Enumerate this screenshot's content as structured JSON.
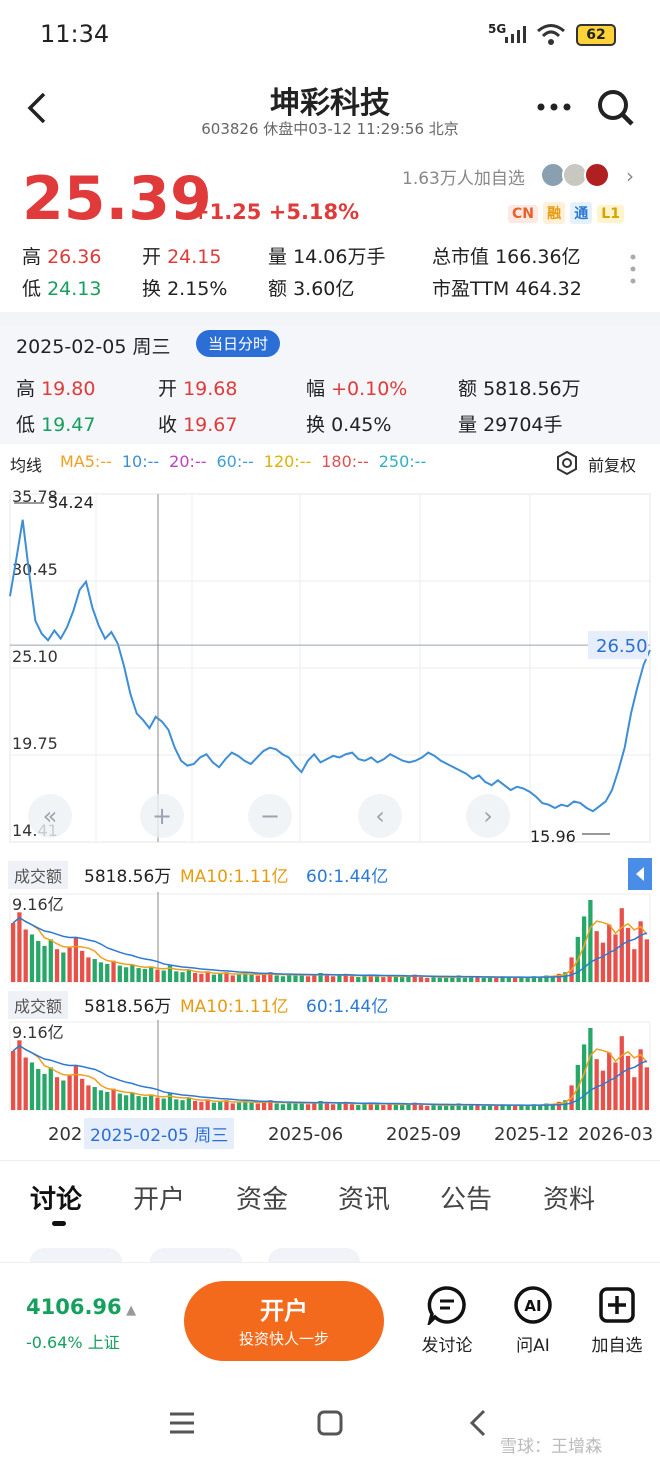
{
  "status_bar": {
    "time": "11:34",
    "signal": "5G",
    "battery": "62"
  },
  "header": {
    "title": "坤彩科技",
    "subtitle": "603826 休盘中03-12 11:29:56 北京"
  },
  "quote": {
    "price": "25.39",
    "change": "+1.25",
    "change_pct": "+5.18%",
    "watchers": "1.63万人加自选",
    "tags": [
      "CN",
      "融",
      "通",
      "L1"
    ],
    "row1": [
      {
        "label": "高",
        "value": "26.36"
      },
      {
        "label": "开",
        "value": "24.15"
      },
      {
        "label": "量",
        "value": "14.06万手"
      },
      {
        "label": "总市值",
        "value": "166.36亿"
      }
    ],
    "row2": [
      {
        "label": "低",
        "value": "24.13"
      },
      {
        "label": "换",
        "value": "2.15%"
      },
      {
        "label": "额",
        "value": "3.60亿"
      },
      {
        "label": "市盈TTM",
        "value": "464.32"
      }
    ]
  },
  "day": {
    "date": "2025-02-05 周三",
    "chip": "当日分时",
    "row1": [
      {
        "label": "高",
        "value": "19.80"
      },
      {
        "label": "开",
        "value": "19.68"
      },
      {
        "label": "幅",
        "value": "+0.10%"
      },
      {
        "label": "额",
        "value": "5818.56万"
      }
    ],
    "row2": [
      {
        "label": "低",
        "value": "19.47"
      },
      {
        "label": "收",
        "value": "19.67"
      },
      {
        "label": "换",
        "value": "0.45%"
      },
      {
        "label": "量",
        "value": "29704手"
      }
    ]
  },
  "ma_legend": {
    "title": "均线",
    "items": [
      {
        "label": "MA5:--",
        "color": "#f0a020"
      },
      {
        "label": "10:--",
        "color": "#3a8fd8"
      },
      {
        "label": "20:--",
        "color": "#c040c0"
      },
      {
        "label": "60:--",
        "color": "#3a9fd8"
      },
      {
        "label": "120:--",
        "color": "#e0b000"
      },
      {
        "label": "180:--",
        "color": "#e05050"
      },
      {
        "label": "250:--",
        "color": "#30b0c0"
      }
    ],
    "adjust": "前复权"
  },
  "chart_data": {
    "type": "line",
    "y_ticks": [
      "35.78",
      "30.45",
      "25.10",
      "19.75",
      "14.41"
    ],
    "ylim": [
      14.41,
      35.78
    ],
    "high_label": "34.24",
    "low_label": "15.96",
    "current_label": "26.50",
    "current_value": 26.5,
    "x_ticks": [
      "202",
      "2025-06",
      "2025-09",
      "2025-12",
      "2026-03"
    ],
    "cursor_label": "2025-02-05 周三",
    "values": [
      29.5,
      31.8,
      34.2,
      31.0,
      28.0,
      27.2,
      26.8,
      27.4,
      26.9,
      27.6,
      28.6,
      29.9,
      30.4,
      28.8,
      27.7,
      26.9,
      27.3,
      26.6,
      25.2,
      23.5,
      22.3,
      21.9,
      21.4,
      22.1,
      21.8,
      21.3,
      20.2,
      19.4,
      19.1,
      19.2,
      19.6,
      19.8,
      19.3,
      19.0,
      19.5,
      19.9,
      19.7,
      19.4,
      19.2,
      19.6,
      20.0,
      20.2,
      20.1,
      19.8,
      19.6,
      19.1,
      18.7,
      19.4,
      19.8,
      19.3,
      19.5,
      19.7,
      19.6,
      19.8,
      19.9,
      19.5,
      19.4,
      19.6,
      19.3,
      19.5,
      19.8,
      19.6,
      19.4,
      19.3,
      19.4,
      19.6,
      19.9,
      19.7,
      19.4,
      19.2,
      19.0,
      18.8,
      18.6,
      18.3,
      18.5,
      18.1,
      17.9,
      18.2,
      17.9,
      17.6,
      17.8,
      17.7,
      17.5,
      17.2,
      16.8,
      16.7,
      16.5,
      16.7,
      16.6,
      16.9,
      16.8,
      16.5,
      16.3,
      16.6,
      16.9,
      17.6,
      18.8,
      20.2,
      22.3,
      23.9,
      25.3,
      26.2
    ],
    "turnover": [
      0.72,
      0.85,
      0.64,
      0.58,
      0.5,
      0.44,
      0.52,
      0.4,
      0.36,
      0.42,
      0.55,
      0.38,
      0.3,
      0.28,
      0.24,
      0.22,
      0.26,
      0.2,
      0.18,
      0.21,
      0.17,
      0.16,
      0.19,
      0.15,
      0.14,
      0.2,
      0.13,
      0.12,
      0.15,
      0.11,
      0.1,
      0.13,
      0.09,
      0.1,
      0.12,
      0.08,
      0.09,
      0.11,
      0.1,
      0.08,
      0.09,
      0.12,
      0.08,
      0.07,
      0.09,
      0.1,
      0.08,
      0.07,
      0.09,
      0.11,
      0.08,
      0.07,
      0.08,
      0.1,
      0.07,
      0.06,
      0.08,
      0.09,
      0.07,
      0.06,
      0.08,
      0.07,
      0.06,
      0.07,
      0.09,
      0.06,
      0.05,
      0.07,
      0.06,
      0.05,
      0.06,
      0.08,
      0.05,
      0.06,
      0.07,
      0.05,
      0.06,
      0.05,
      0.07,
      0.06,
      0.05,
      0.06,
      0.05,
      0.07,
      0.06,
      0.08,
      0.07,
      0.1,
      0.12,
      0.3,
      0.55,
      0.8,
      1.0,
      0.62,
      0.48,
      0.7,
      0.58,
      0.9,
      0.66,
      0.4,
      0.74,
      0.52
    ]
  },
  "volume_panel": {
    "label": "成交额",
    "value": "5818.56万",
    "ma10": "MA10:1.11亿",
    "ma60": "60:1.44亿",
    "ymax": "9.16亿"
  },
  "controls": [
    "«",
    "+",
    "−",
    "‹",
    "›"
  ],
  "tabs": [
    "讨论",
    "开户",
    "资金",
    "资讯",
    "公告",
    "资料"
  ],
  "bottom_bar": {
    "index_value": "4106.96",
    "index_change": "-0.64%",
    "index_name": "上证",
    "open_title": "开户",
    "open_sub": "投资快人一步",
    "actions": [
      {
        "icon": "comment-icon",
        "label": "发讨论"
      },
      {
        "icon": "ai-icon",
        "label": "问AI"
      },
      {
        "icon": "add-watchlist-icon",
        "label": "加自选"
      }
    ]
  },
  "watermark": "雪球：王增森"
}
